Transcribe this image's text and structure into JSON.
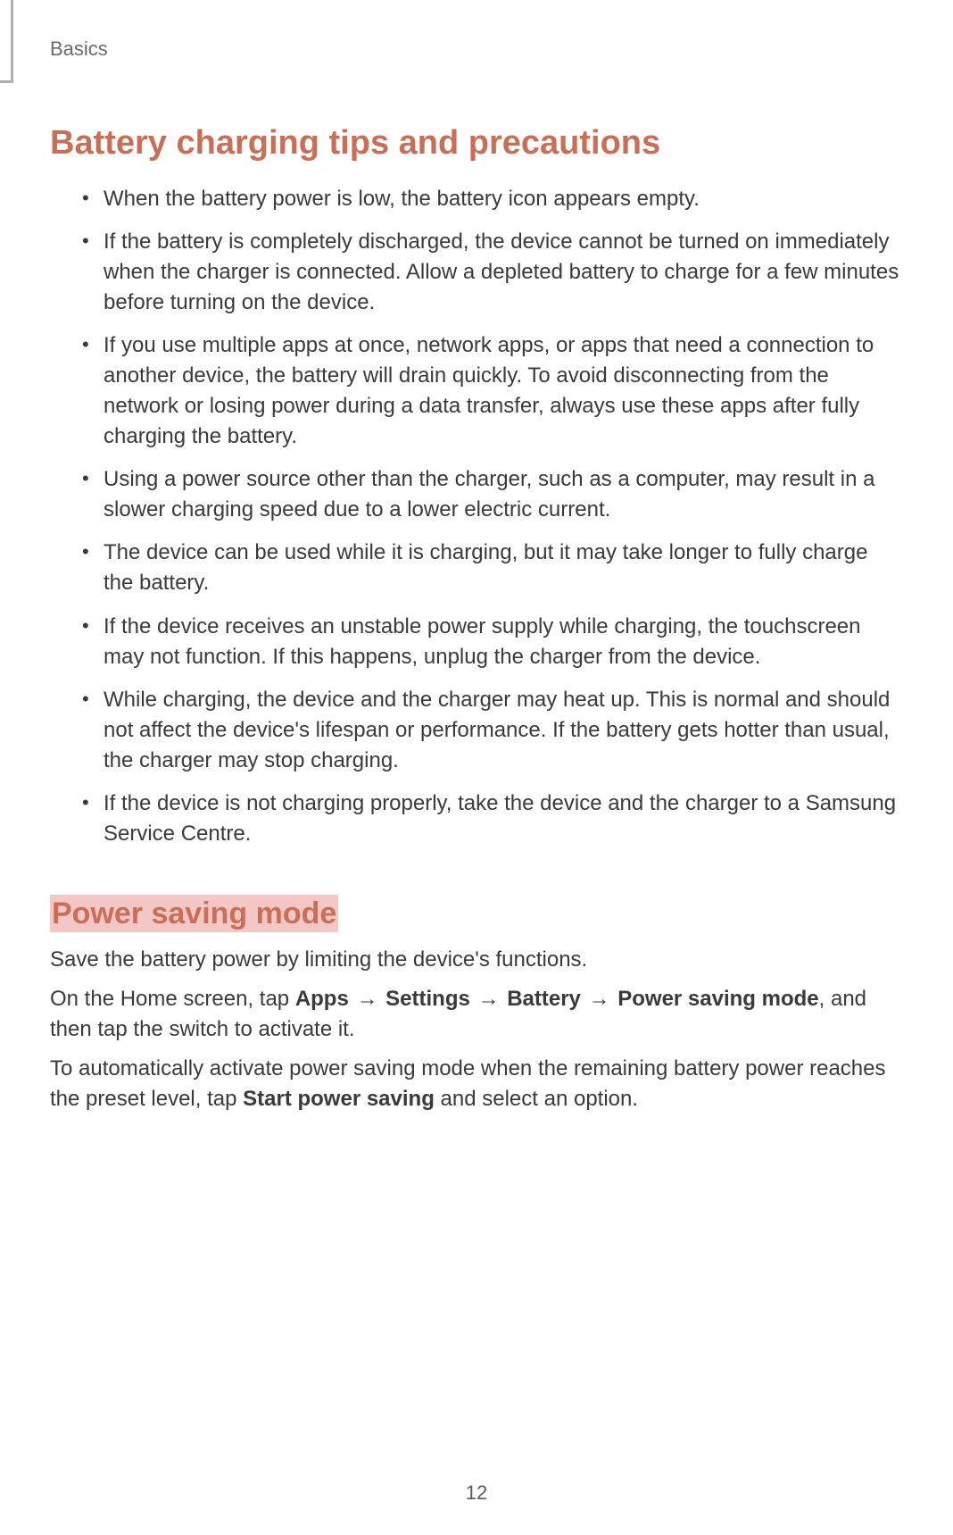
{
  "colors": {
    "text": "#3a3a3a",
    "heading": "#c96f57",
    "highlight_bg": "#f4c7c7",
    "page_bg": "#ffffff",
    "header_border": "#b0b0b0",
    "section_label": "#6b6b6b",
    "page_number": "#5a5a5a"
  },
  "typography": {
    "body_fontsize": 24,
    "h1_fontsize": 38,
    "h2_fontsize": 34,
    "section_label_fontsize": 22,
    "page_number_fontsize": 22,
    "line_height": 1.42,
    "font_family": "Segoe UI, Helvetica Neue, Arial, sans-serif"
  },
  "header": {
    "section_label": "Basics"
  },
  "section1": {
    "heading": "Battery charging tips and precautions",
    "bullets": [
      "When the battery power is low, the battery icon appears empty.",
      "If the battery is completely discharged, the device cannot be turned on immediately when the charger is connected. Allow a depleted battery to charge for a few minutes before turning on the device.",
      "If you use multiple apps at once, network apps, or apps that need a connection to another device, the battery will drain quickly. To avoid disconnecting from the network or losing power during a data transfer, always use these apps after fully charging the battery.",
      "Using a power source other than the charger, such as a computer, may result in a slower charging speed due to a lower electric current.",
      "The device can be used while it is charging, but it may take longer to fully charge the battery.",
      "If the device receives an unstable power supply while charging, the touchscreen may not function. If this happens, unplug the charger from the device.",
      "While charging, the device and the charger may heat up. This is normal and should not affect the device's lifespan or performance. If the battery gets hotter than usual, the charger may stop charging.",
      "If the device is not charging properly, take the device and the charger to a Samsung Service Centre."
    ]
  },
  "section2": {
    "heading": "Power saving mode",
    "intro": "Save the battery power by limiting the device's functions.",
    "nav_prefix": "On the Home screen, tap ",
    "nav_bold_1": "Apps",
    "nav_arrow": " → ",
    "nav_bold_2": "Settings",
    "nav_bold_3": "Battery",
    "nav_bold_4": "Power saving mode",
    "nav_suffix": ", and then tap the switch to activate it.",
    "auto_prefix": "To automatically activate power saving mode when the remaining battery power reaches the preset level, tap ",
    "auto_bold": "Start power saving",
    "auto_suffix": " and select an option."
  },
  "page_number": "12"
}
